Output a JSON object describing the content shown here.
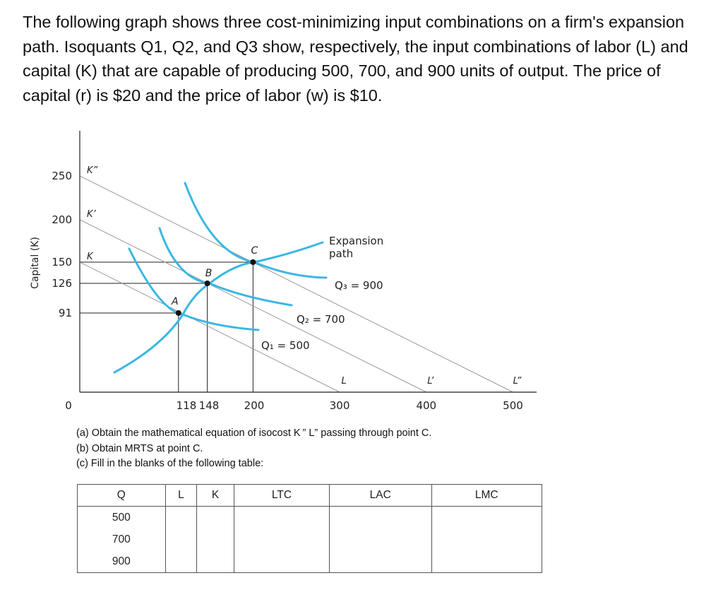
{
  "problem": {
    "intro": "The following graph shows three cost-minimizing input combinations on a firm's expansion path. Isoquants Q1, Q2, and Q3 show, respectively, the input combinations of labor (L) and capital (K) that are capable of producing 500, 700, and 900 units of output. The price of capital (r) is $20 and the price of labor (w) is $10.",
    "questions": [
      "(a) Obtain the mathematical equation of isocost K ” L” passing through point C.",
      "(b) Obtain MRTS at point C.",
      "(c) Fill in the blanks of the following table:"
    ]
  },
  "chart_data": {
    "type": "line",
    "xlabel": "",
    "ylabel": "Capital (K)",
    "xlim": [
      0,
      500
    ],
    "ylim": [
      0,
      250
    ],
    "x_ticks": [
      "118",
      "148",
      "200",
      "300",
      "400",
      "500"
    ],
    "y_ticks": [
      "250",
      "200",
      "150",
      "126",
      "91"
    ],
    "origin_label": "0",
    "isocosts": [
      {
        "k_label": "K",
        "l_label": "L",
        "k_intercept": 150,
        "l_intercept": 300
      },
      {
        "k_label": "K’",
        "l_label": "L’",
        "k_intercept": 200,
        "l_intercept": 400
      },
      {
        "k_label": "K”",
        "l_label": "L”",
        "k_intercept": 250,
        "l_intercept": 500
      }
    ],
    "points": [
      {
        "name": "A",
        "L": 118,
        "K": 91
      },
      {
        "name": "B",
        "L": 148,
        "K": 126
      },
      {
        "name": "C",
        "L": 200,
        "K": 150
      }
    ],
    "isoquants": [
      {
        "label": "Q₁ = 500",
        "Q": 500
      },
      {
        "label": "Q₂ = 700",
        "Q": 700
      },
      {
        "label": "Q₃ = 900",
        "Q": 900
      }
    ],
    "expansion_path_label": [
      "Expansion",
      "path"
    ],
    "colors": {
      "isoquant": "#3ab7e3",
      "isocost": "#9a9a9a",
      "axis": "#222222"
    }
  },
  "table": {
    "headers": [
      "Q",
      "L",
      "K",
      "LTC",
      "LAC",
      "LMC"
    ],
    "rows": [
      {
        "q": "500"
      },
      {
        "q": "700"
      },
      {
        "q": "900"
      }
    ]
  }
}
